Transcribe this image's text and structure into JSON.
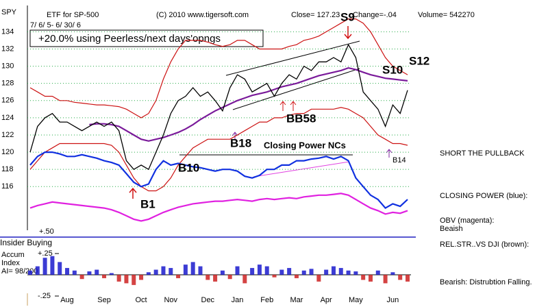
{
  "chart_data": [
    {
      "type": "line",
      "ticker": "SPY",
      "title": "ETF for SP-500",
      "source": "(C) 2010 www.tigersoft.com",
      "close": "Close= 127.23",
      "change": "Change=-.04",
      "volume": "Volume= 542270",
      "date_range": "7/ 6/ 5- 6/ 30/ 6",
      "performance": "+20.0% using Peerless/next days'opngs",
      "categories": [
        null,
        null,
        null,
        null,
        null,
        "Aug",
        null,
        null,
        null,
        null,
        "Sep",
        null,
        null,
        null,
        null,
        "Oct",
        null,
        null,
        null,
        "Nov",
        null,
        null,
        null,
        null,
        "Dec",
        null,
        null,
        null,
        "Jan",
        null,
        null,
        null,
        "Feb",
        null,
        null,
        null,
        "Mar",
        null,
        null,
        null,
        "Apr",
        null,
        null,
        null,
        "May",
        null,
        null,
        null,
        null,
        "Jun",
        null,
        null
      ],
      "series": [
        {
          "name": "Upper band",
          "color": "#cc1111",
          "width": 1.2,
          "values": [
            127.5,
            127,
            126.5,
            126.5,
            126,
            126,
            125.8,
            125.7,
            125.6,
            125.5,
            125.5,
            125.4,
            125.3,
            125,
            124.5,
            124,
            124.5,
            126,
            128.5,
            130.5,
            132,
            133,
            133,
            133,
            132.8,
            132.5,
            132.3,
            132.5,
            133,
            133,
            132.5,
            132,
            132,
            132,
            132,
            132.3,
            132.5,
            133,
            133.2,
            133.5,
            134,
            134.5,
            135,
            135.5,
            135.5,
            135,
            134,
            132.5,
            131,
            130,
            129.5,
            129
          ]
        },
        {
          "name": "Lower band",
          "color": "#cc1111",
          "width": 1.2,
          "values": [
            118,
            119,
            120,
            120.5,
            121,
            121,
            121,
            121,
            121,
            121,
            121,
            120.8,
            120,
            118.5,
            117,
            116,
            115.5,
            115.5,
            116,
            117,
            118.5,
            119.5,
            120.5,
            121,
            121.5,
            121.5,
            121.5,
            121.5,
            122,
            122.5,
            123,
            123.5,
            123.5,
            124,
            124,
            124.3,
            124.5,
            124.5,
            125,
            125,
            125,
            125,
            125.2,
            125,
            124.5,
            124,
            123,
            122,
            121.5,
            121,
            121,
            120.8
          ]
        },
        {
          "name": "Moving average",
          "color": "#7a1a9a",
          "width": 2.2,
          "values": [
            null,
            null,
            null,
            null,
            null,
            null,
            null,
            null,
            123.2,
            123.3,
            123.3,
            123.2,
            123,
            122.5,
            122,
            121.5,
            121.3,
            121.5,
            121.7,
            122,
            122.3,
            122.7,
            123.2,
            123.8,
            124.3,
            124.8,
            125.2,
            125.6,
            126,
            126.3,
            126.6,
            126.8,
            127,
            127.3,
            127.6,
            127.8,
            128,
            128.3,
            128.6,
            128.9,
            129.1,
            129.3,
            129.5,
            129.8,
            129.6,
            129.3,
            129,
            128.8,
            128.6,
            128.5,
            128.4,
            128.3
          ]
        },
        {
          "name": "Price",
          "color": "#000000",
          "width": 1.3,
          "values": [
            120,
            123,
            124,
            124.5,
            123.5,
            123.5,
            123,
            122.5,
            123,
            123.5,
            123,
            123.5,
            122.5,
            119,
            118,
            118.5,
            118,
            120,
            122,
            124.5,
            126,
            126.5,
            127.5,
            126.5,
            127,
            126,
            124.8,
            127.5,
            129,
            128.5,
            127,
            127.5,
            128,
            126.5,
            128,
            129,
            128.5,
            130,
            129.5,
            130.5,
            130.5,
            131,
            130.5,
            132.5,
            131,
            127,
            126,
            125,
            123,
            125.5,
            124.5,
            127.2
          ]
        },
        {
          "name": "Closing Power",
          "color": "#1030e0",
          "width": 2.2,
          "values": [
            118.5,
            119.5,
            120,
            120,
            119.8,
            119.5,
            119.5,
            119.7,
            119.5,
            119.3,
            119,
            118.8,
            118.5,
            117.5,
            116.5,
            116,
            116.3,
            118,
            119,
            118.5,
            118.7,
            118.5,
            118.3,
            118.2,
            118,
            117.8,
            118,
            118,
            117.8,
            117.2,
            117,
            117.3,
            118,
            118,
            118.5,
            118.5,
            119,
            119,
            119.2,
            119.3,
            119.5,
            119.2,
            119.5,
            119,
            117,
            116,
            115,
            114.5,
            113.5,
            114,
            113.7,
            114.5
          ]
        },
        {
          "name": "OBV",
          "color": "#e020e0",
          "width": 2.2,
          "values": [
            113.5,
            113.8,
            114,
            114.2,
            114.1,
            114,
            113.9,
            113.8,
            113.7,
            113.6,
            113.5,
            113.3,
            113,
            112.6,
            112.2,
            112,
            112.2,
            112.6,
            113,
            113.3,
            113.6,
            113.8,
            114,
            114.1,
            114.2,
            114.3,
            114.3,
            114.4,
            114.5,
            114.4,
            114.3,
            114.5,
            114.6,
            114.5,
            114.6,
            114.7,
            114.6,
            114.8,
            114.9,
            115,
            115,
            115.1,
            115.2,
            115,
            114.5,
            114,
            113.5,
            113.2,
            112.8,
            113,
            112.9,
            113.2
          ]
        }
      ],
      "ylim": [
        111,
        136.9
      ],
      "yticks": [
        116,
        118,
        120,
        122,
        124,
        126,
        128,
        130,
        132,
        134
      ],
      "grid": true,
      "grid_color": "#22aa44",
      "annotations": [
        "S9",
        "S10",
        "S12",
        "B1",
        "B10",
        "B18",
        "BB58",
        "Closing Power NCs",
        "B14"
      ]
    },
    {
      "type": "bar",
      "label_lines": [
        "Accum",
        "Index"
      ],
      "ai": "AI= 98/200",
      "insider_label": "Insider Buying",
      "insider_level": "+.50",
      "positive_color": "#1a1acc",
      "negative_color": "#cc2222",
      "values": [
        0.05,
        0.1,
        0.2,
        0.22,
        0.15,
        0.08,
        0.05,
        -0.05,
        0.04,
        0.06,
        -0.04,
        0.02,
        -0.08,
        -0.1,
        -0.12,
        -0.06,
        0.03,
        0.06,
        0.1,
        0.08,
        -0.04,
        0.12,
        0.15,
        0.1,
        -0.06,
        -0.08,
        0.05,
        -0.05,
        0.1,
        -0.1,
        0.08,
        0.12,
        0.1,
        -0.03,
        0.06,
        0.08,
        -0.04,
        0.05,
        0.07,
        -0.08,
        0.06,
        0.1,
        0.08,
        0.05,
        0.04,
        -0.06,
        -0.08,
        0.05,
        -0.1,
        0.03,
        -0.06,
        -0.08
      ],
      "ylim": [
        -0.25,
        0.25
      ],
      "yticks": [
        {
          "value": 0.25,
          "label": "+.25"
        },
        {
          "value": -0.25,
          "label": "-.25"
        }
      ]
    }
  ],
  "notes": [
    "SHORT THE PULLBACK",
    "CLOSING POWER (blue):",
    "OBV (magenta):",
    "Beaish",
    "REL.STR..VS DJI (brown):",
    "Bearish: Distrubtion Falling."
  ]
}
